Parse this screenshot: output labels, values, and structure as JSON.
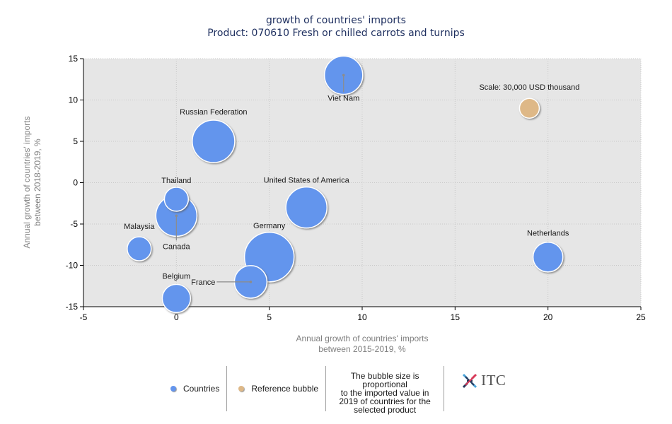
{
  "chart_data": {
    "type": "scatter",
    "subtype": "bubble",
    "title": "growth of countries' imports",
    "subtitle": "Product: 070610 Fresh or chilled carrots and turnips",
    "xlabel": [
      "Annual growth of countries' imports",
      "between 2015-2019, %"
    ],
    "ylabel": [
      "Annual growth of countries' imports",
      "between 2018-2019, %"
    ],
    "xlim": [
      -5,
      25
    ],
    "ylim": [
      -15,
      15
    ],
    "xticks": [
      -5,
      0,
      5,
      10,
      15,
      20,
      25
    ],
    "yticks": [
      -15,
      -10,
      -5,
      0,
      5,
      10,
      15
    ],
    "xtick_labels": [
      "-5",
      "0",
      "5",
      "10",
      "15",
      "20",
      "25"
    ],
    "ytick_labels": [
      "-15",
      "-10",
      "-5",
      "0",
      "5",
      "10",
      "15"
    ],
    "grid": true,
    "size_unit": "USD thousand (imported value in 2019)",
    "series": [
      {
        "name": "Countries",
        "color": "#6495ED",
        "points": [
          {
            "label": "Viet Nam",
            "x": 9,
            "y": 13,
            "size": 112000,
            "label_pos": "below-leader"
          },
          {
            "label": "Russian Federation",
            "x": 2,
            "y": 5,
            "size": 138000,
            "label_pos": "above"
          },
          {
            "label": "Canada",
            "x": 0,
            "y": -4,
            "size": 129000,
            "label_pos": "below-leader"
          },
          {
            "label": "Thailand",
            "x": 0,
            "y": -2,
            "size": 44000,
            "label_pos": "above"
          },
          {
            "label": "Malaysia",
            "x": -2,
            "y": -8,
            "size": 44000,
            "label_pos": "above"
          },
          {
            "label": "Germany",
            "x": 5,
            "y": -9,
            "size": 188000,
            "label_pos": "above"
          },
          {
            "label": "United States of America",
            "x": 7,
            "y": -3,
            "size": 129000,
            "label_pos": "above"
          },
          {
            "label": "Netherlands",
            "x": 20,
            "y": -9,
            "size": 68000,
            "label_pos": "above"
          },
          {
            "label": "Belgium",
            "x": 0,
            "y": -14,
            "size": 61000,
            "label_pos": "above"
          },
          {
            "label": "France",
            "x": 4,
            "y": -12,
            "size": 81000,
            "label_pos": "left-leader"
          }
        ]
      },
      {
        "name": "Reference bubble",
        "color": "#DEB887",
        "points": [
          {
            "label": "Scale: 30,000 USD thousand",
            "x": 19,
            "y": 9,
            "size": 30000,
            "label_pos": "above"
          }
        ]
      }
    ],
    "legend": {
      "position": "bottom",
      "entries": [
        "Countries",
        "Reference bubble"
      ],
      "note": "The bubble size is proportional to the imported value in 2019 of countries for the selected product"
    }
  },
  "legend": {
    "countries_label": "Countries",
    "reference_label": "Reference bubble",
    "note_lines": [
      "The bubble size is proportional",
      "to the imported value in",
      "2019 of countries for the",
      "selected product"
    ],
    "colors": {
      "countries": "#6495ED",
      "reference": "#DEB887"
    }
  },
  "logo": {
    "text": "ITC"
  }
}
